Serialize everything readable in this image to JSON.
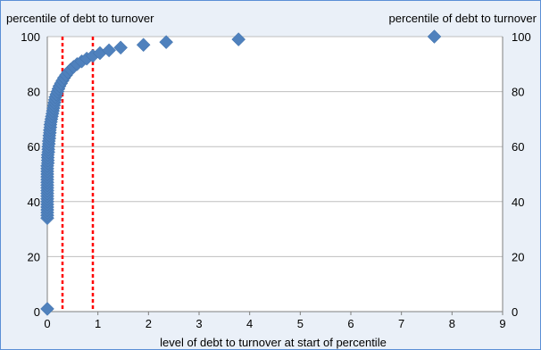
{
  "colors": {
    "background": "#eaf0f8",
    "border": "#5b8fd6",
    "marker": "#4f81bd",
    "reference_line": "#ff0000"
  },
  "chart_data": {
    "type": "scatter",
    "title": "",
    "ylabel_left": "percentile of debt to turnover",
    "ylabel_right": "percentile of debt to turnover",
    "xlabel": "level of debt to turnover at start of percentile",
    "xlim": [
      0,
      9
    ],
    "ylim": [
      0,
      100
    ],
    "x_ticks": [
      "0",
      "1",
      "2",
      "3",
      "4",
      "5",
      "6",
      "7",
      "8",
      "9"
    ],
    "y_ticks": [
      "0",
      "20",
      "40",
      "60",
      "80",
      "100"
    ],
    "grid": "horizontal",
    "marker": "diamond",
    "reference_lines_x": [
      0.3,
      0.9
    ],
    "series": [
      {
        "points": [
          [
            0.0,
            1
          ],
          [
            0.0,
            34
          ],
          [
            0.0,
            35
          ],
          [
            0.0,
            36
          ],
          [
            0.0,
            37
          ],
          [
            0.0,
            38
          ],
          [
            0.0,
            39
          ],
          [
            0.0,
            40
          ],
          [
            0.0,
            41
          ],
          [
            0.0,
            42
          ],
          [
            0.0,
            43
          ],
          [
            0.0,
            44
          ],
          [
            0.0,
            45
          ],
          [
            0.0,
            46
          ],
          [
            0.0,
            47
          ],
          [
            0.0,
            48
          ],
          [
            0.0,
            49
          ],
          [
            0.0,
            50
          ],
          [
            0.0,
            51
          ],
          [
            0.0,
            52
          ],
          [
            0.0,
            53
          ],
          [
            0.01,
            54
          ],
          [
            0.01,
            55
          ],
          [
            0.01,
            56
          ],
          [
            0.01,
            57
          ],
          [
            0.02,
            58
          ],
          [
            0.02,
            59
          ],
          [
            0.02,
            60
          ],
          [
            0.03,
            61
          ],
          [
            0.03,
            62
          ],
          [
            0.04,
            63
          ],
          [
            0.04,
            64
          ],
          [
            0.05,
            65
          ],
          [
            0.05,
            66
          ],
          [
            0.06,
            67
          ],
          [
            0.06,
            68
          ],
          [
            0.07,
            69
          ],
          [
            0.08,
            70
          ],
          [
            0.09,
            71
          ],
          [
            0.1,
            72
          ],
          [
            0.11,
            73
          ],
          [
            0.12,
            74
          ],
          [
            0.13,
            75
          ],
          [
            0.14,
            76
          ],
          [
            0.15,
            77
          ],
          [
            0.16,
            78
          ],
          [
            0.18,
            79
          ],
          [
            0.2,
            80
          ],
          [
            0.22,
            81
          ],
          [
            0.24,
            82
          ],
          [
            0.27,
            83
          ],
          [
            0.3,
            84
          ],
          [
            0.33,
            85
          ],
          [
            0.37,
            86
          ],
          [
            0.41,
            87
          ],
          [
            0.46,
            88
          ],
          [
            0.52,
            89
          ],
          [
            0.59,
            90
          ],
          [
            0.68,
            91
          ],
          [
            0.78,
            92
          ],
          [
            0.9,
            93
          ],
          [
            1.04,
            94
          ],
          [
            1.22,
            95
          ],
          [
            1.45,
            96
          ],
          [
            1.9,
            97
          ],
          [
            2.35,
            98
          ],
          [
            3.78,
            99
          ],
          [
            7.65,
            100
          ]
        ]
      }
    ]
  }
}
